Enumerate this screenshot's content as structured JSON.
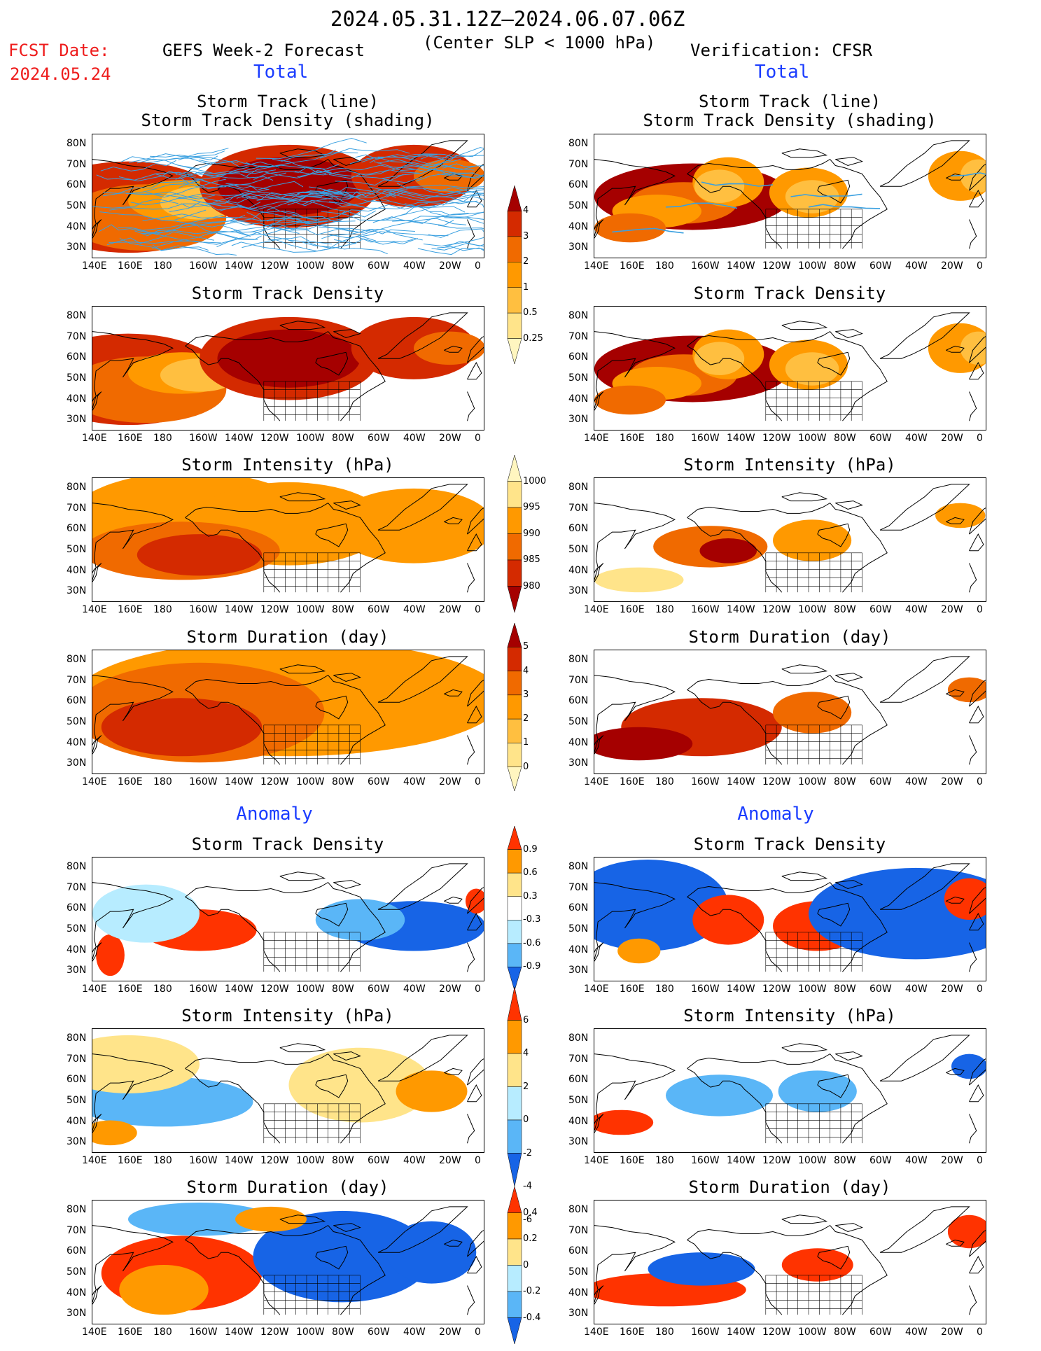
{
  "header": {
    "period": "2024.05.31.12Z–2024.06.07.06Z",
    "criterion": "(Center SLP < 1000 hPa)",
    "fcst_label": "FCST Date:",
    "fcst_date": "2024.05.24",
    "forecast_title": "GEFS Week-2 Forecast",
    "verification_title": "Verification: CFSR",
    "total_label": "Total",
    "anomaly_label": "Anomaly"
  },
  "axes": {
    "lon_labels": [
      "140E",
      "160E",
      "180",
      "160W",
      "140W",
      "120W",
      "100W",
      "80W",
      "60W",
      "40W",
      "20W",
      "0"
    ],
    "lat_labels": [
      "80N",
      "70N",
      "60N",
      "50N",
      "40N",
      "30N"
    ]
  },
  "panels": {
    "forecast": [
      {
        "title_lines": [
          "Storm Track (line)",
          "Storm Track Density (shading)"
        ]
      },
      {
        "title_lines": [
          "Storm Track Density"
        ]
      },
      {
        "title_lines": [
          "Storm Intensity (hPa)"
        ]
      },
      {
        "title_lines": [
          "Storm Duration (day)"
        ]
      },
      {
        "title_lines": [
          "Storm Track Density"
        ]
      },
      {
        "title_lines": [
          "Storm Intensity (hPa)"
        ]
      },
      {
        "title_lines": [
          "Storm Duration (day)"
        ]
      }
    ],
    "verification": [
      {
        "title_lines": [
          "Storm Track (line)",
          "Storm Track Density (shading)"
        ]
      },
      {
        "title_lines": [
          "Storm Track Density"
        ]
      },
      {
        "title_lines": [
          "Storm Intensity (hPa)"
        ]
      },
      {
        "title_lines": [
          "Storm Duration (day)"
        ]
      },
      {
        "title_lines": [
          "Storm Track Density"
        ]
      },
      {
        "title_lines": [
          "Storm Intensity (hPa)"
        ]
      },
      {
        "title_lines": [
          "Storm Duration (day)"
        ]
      }
    ]
  },
  "colorbars": {
    "density": {
      "labels": [
        "4",
        "3",
        "2",
        "1",
        "0.5",
        "0.25"
      ],
      "colors": [
        "#a50000",
        "#d42a00",
        "#f06a00",
        "#ff9900",
        "#ffbf40",
        "#ffe48a",
        "#fff6c0"
      ]
    },
    "intensity": {
      "labels": [
        "1000",
        "995",
        "990",
        "985",
        "980"
      ],
      "colors": [
        "#fff6c0",
        "#ffe48a",
        "#ff9900",
        "#f06a00",
        "#d42a00",
        "#a50000"
      ]
    },
    "duration": {
      "labels": [
        "5",
        "4",
        "3",
        "2",
        "1",
        "0"
      ],
      "colors": [
        "#a50000",
        "#d42a00",
        "#f06a00",
        "#ff9900",
        "#ffbf40",
        "#ffe48a",
        "#fff6c0"
      ]
    },
    "density_anom": {
      "labels": [
        "0.9",
        "0.6",
        "0.3",
        "-0.3",
        "-0.6",
        "-0.9"
      ],
      "colors": [
        "#ff3300",
        "#ff9900",
        "#ffe48a",
        "#ffffff",
        "#b7ecff",
        "#5ab6f7",
        "#1764e6"
      ]
    },
    "intensity_anom": {
      "labels": [
        "6",
        "4",
        "2",
        "0",
        "-2",
        "-4",
        "-6"
      ],
      "colors": [
        "#ff3300",
        "#ff9900",
        "#ffe48a",
        "#b7ecff",
        "#5ab6f7",
        "#1764e6"
      ]
    },
    "duration_anom": {
      "labels": [
        "0.4",
        "0.2",
        "0",
        "-0.2",
        "-0.4"
      ],
      "colors": [
        "#ff3300",
        "#ff9900",
        "#ffe48a",
        "#b7ecff",
        "#5ab6f7",
        "#1764e6"
      ]
    }
  },
  "palette": {
    "track_line": "#3aa0e0",
    "coast": "#000000"
  }
}
